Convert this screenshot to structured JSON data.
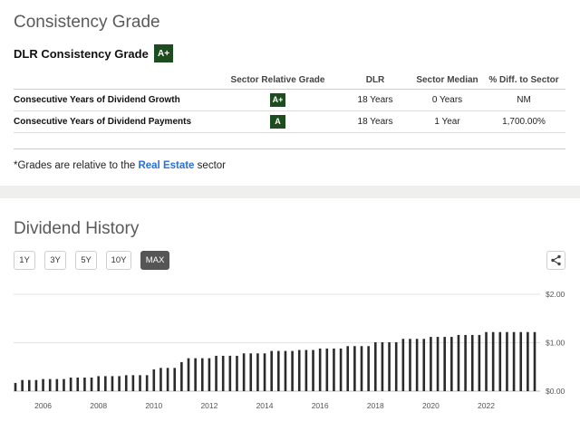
{
  "consistency": {
    "title": "Consistency Grade",
    "header_label": "DLR Consistency Grade",
    "header_grade": "A+",
    "columns": [
      "",
      "Sector Relative Grade",
      "DLR",
      "Sector Median",
      "% Diff. to Sector"
    ],
    "rows": [
      {
        "label": "Consecutive Years of Dividend Growth",
        "grade": "A+",
        "dlr": "18 Years",
        "median": "0 Years",
        "diff": "NM"
      },
      {
        "label": "Consecutive Years of Dividend Payments",
        "grade": "A",
        "dlr": "18 Years",
        "median": "1 Year",
        "diff": "1,700.00%"
      }
    ],
    "footnote_prefix": "*Grades are relative to the",
    "footnote_link": "Real Estate",
    "footnote_suffix": "sector",
    "badge_color": "#1d4d1f",
    "link_color": "#2a6fdb"
  },
  "dividend_history": {
    "title": "Dividend History",
    "ranges": [
      "1Y",
      "3Y",
      "5Y",
      "10Y",
      "MAX"
    ],
    "active_range": "MAX",
    "share_icon": "share-icon"
  },
  "chart_data": {
    "type": "bar",
    "title": "",
    "xlabel": "",
    "ylabel": "",
    "ylim": [
      0,
      2.0
    ],
    "y_ticks": [
      "$0.00",
      "$1.00",
      "$2.00"
    ],
    "x_ticks": [
      "2006",
      "2008",
      "2010",
      "2012",
      "2014",
      "2016",
      "2018",
      "2020",
      "2022"
    ],
    "x_range": [
      2005.0,
      2023.75
    ],
    "grid": true,
    "bar_color": "#2b2b2b",
    "x": [
      2005.0,
      2005.25,
      2005.5,
      2005.75,
      2006.0,
      2006.25,
      2006.5,
      2006.75,
      2007.0,
      2007.25,
      2007.5,
      2007.75,
      2008.0,
      2008.25,
      2008.5,
      2008.75,
      2009.0,
      2009.25,
      2009.5,
      2009.75,
      2010.0,
      2010.25,
      2010.5,
      2010.75,
      2011.0,
      2011.25,
      2011.5,
      2011.75,
      2012.0,
      2012.25,
      2012.5,
      2012.75,
      2013.0,
      2013.25,
      2013.5,
      2013.75,
      2014.0,
      2014.25,
      2014.5,
      2014.75,
      2015.0,
      2015.25,
      2015.5,
      2015.75,
      2016.0,
      2016.25,
      2016.5,
      2016.75,
      2017.0,
      2017.25,
      2017.5,
      2017.75,
      2018.0,
      2018.25,
      2018.5,
      2018.75,
      2019.0,
      2019.25,
      2019.5,
      2019.75,
      2020.0,
      2020.25,
      2020.5,
      2020.75,
      2021.0,
      2021.25,
      2021.5,
      2021.75,
      2022.0,
      2022.25,
      2022.5,
      2022.75,
      2023.0,
      2023.25,
      2023.5,
      2023.75
    ],
    "values": [
      0.17,
      0.23,
      0.23,
      0.23,
      0.25,
      0.25,
      0.25,
      0.25,
      0.28,
      0.28,
      0.28,
      0.28,
      0.31,
      0.31,
      0.31,
      0.31,
      0.33,
      0.33,
      0.33,
      0.33,
      0.45,
      0.48,
      0.48,
      0.48,
      0.6,
      0.68,
      0.68,
      0.68,
      0.68,
      0.73,
      0.73,
      0.73,
      0.73,
      0.78,
      0.78,
      0.78,
      0.78,
      0.83,
      0.83,
      0.83,
      0.83,
      0.85,
      0.85,
      0.85,
      0.88,
      0.88,
      0.88,
      0.88,
      0.93,
      0.93,
      0.93,
      0.93,
      1.01,
      1.01,
      1.01,
      1.01,
      1.08,
      1.08,
      1.08,
      1.08,
      1.12,
      1.12,
      1.12,
      1.12,
      1.16,
      1.16,
      1.16,
      1.16,
      1.22,
      1.22,
      1.22,
      1.22,
      1.22,
      1.22,
      1.22,
      1.22
    ]
  }
}
